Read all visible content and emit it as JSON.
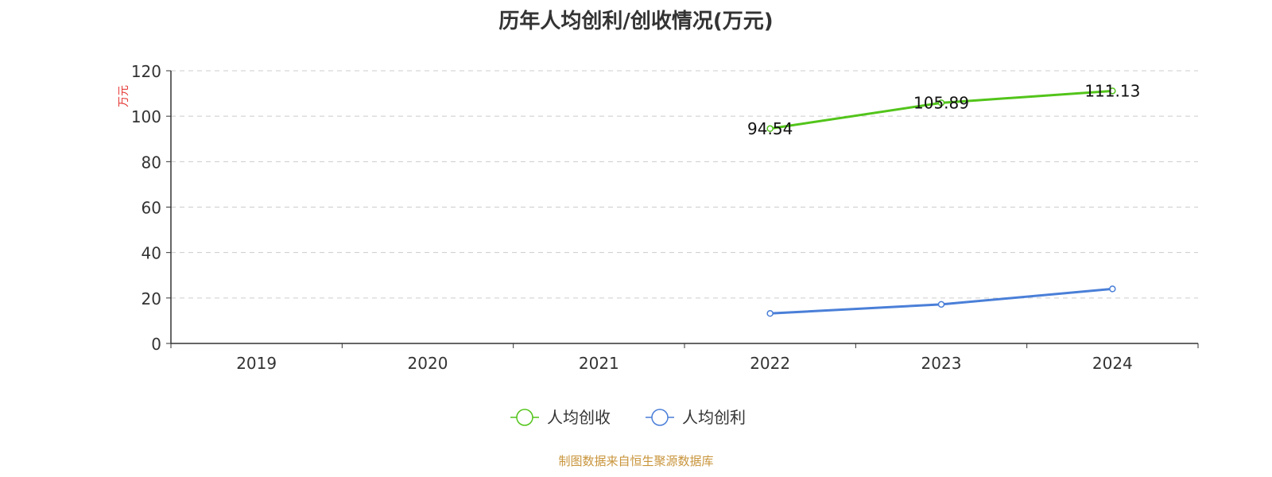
{
  "title": "历年人均创利/创收情况(万元)",
  "source_note": "制图数据来自恒生聚源数据库",
  "chart_data": {
    "type": "line",
    "title": "历年人均创利/创收情况(万元)",
    "ylabel": "万元",
    "xlabel": "",
    "categories": [
      "2019",
      "2020",
      "2021",
      "2022",
      "2023",
      "2024"
    ],
    "ylim": [
      0,
      120
    ],
    "yticks": [
      0,
      20,
      40,
      60,
      80,
      100,
      120
    ],
    "grid": true,
    "legend_position": "bottom",
    "series": [
      {
        "name": "人均创收",
        "color": "#52c41a",
        "values": [
          null,
          null,
          null,
          94.54,
          105.89,
          111.13
        ],
        "labels": [
          "",
          "",
          "",
          "94.54",
          "105.89",
          "111.13"
        ]
      },
      {
        "name": "人均创利",
        "color": "#4a7fd8",
        "values": [
          null,
          null,
          null,
          13.2,
          17.2,
          24.0
        ],
        "labels": [
          "",
          "",
          "",
          "",
          "",
          ""
        ]
      }
    ]
  }
}
